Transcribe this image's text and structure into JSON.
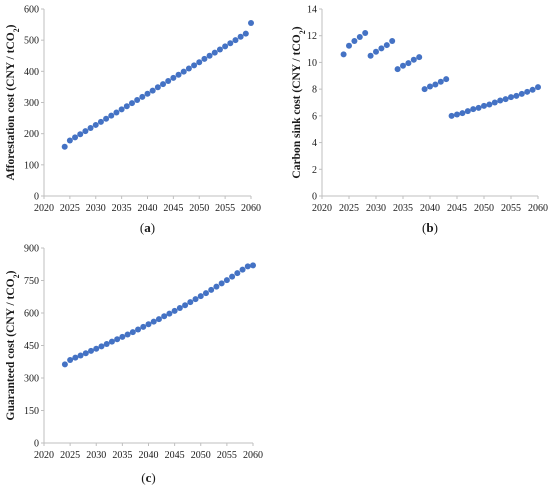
{
  "chart_data": [
    {
      "type": "scatter",
      "panel": "(a)",
      "caption_letter": "a",
      "ylabel": "Afforestation cost (CNY / tCO",
      "ylabel_sub": "2",
      "ylabel_end": ")",
      "xlim": [
        2020,
        2060
      ],
      "ylim": [
        0,
        600
      ],
      "x_ticks": [
        2020,
        2025,
        2030,
        2035,
        2040,
        2045,
        2050,
        2055,
        2060
      ],
      "y_ticks": [
        0,
        100,
        200,
        300,
        400,
        500,
        600
      ],
      "point_color": "#4472c4",
      "x": [
        2024,
        2025,
        2026,
        2027,
        2028,
        2029,
        2030,
        2031,
        2032,
        2033,
        2034,
        2035,
        2036,
        2037,
        2038,
        2039,
        2040,
        2041,
        2042,
        2043,
        2044,
        2045,
        2046,
        2047,
        2048,
        2049,
        2050,
        2051,
        2052,
        2053,
        2054,
        2055,
        2056,
        2057,
        2058,
        2059,
        2060
      ],
      "y": [
        158,
        178,
        188,
        198,
        208,
        218,
        228,
        238,
        248,
        258,
        268,
        278,
        288,
        298,
        308,
        318,
        328,
        338,
        349,
        359,
        369,
        379,
        389,
        399,
        409,
        419,
        429,
        440,
        450,
        460,
        470,
        480,
        490,
        500,
        511,
        521,
        555
      ]
    },
    {
      "type": "scatter",
      "panel": "(b)",
      "caption_letter": "b",
      "ylabel": "Carbon sink cost (CNY / tCO",
      "ylabel_sub": "2",
      "ylabel_end": ")",
      "xlim": [
        2020,
        2060
      ],
      "ylim": [
        0,
        14
      ],
      "x_ticks": [
        2020,
        2025,
        2030,
        2035,
        2040,
        2045,
        2050,
        2055,
        2060
      ],
      "y_ticks": [
        0,
        2,
        4,
        6,
        8,
        10,
        12,
        14
      ],
      "point_color": "#4472c4",
      "x": [
        2024,
        2025,
        2026,
        2027,
        2028,
        2029,
        2030,
        2031,
        2032,
        2033,
        2034,
        2035,
        2036,
        2037,
        2038,
        2039,
        2040,
        2041,
        2042,
        2043,
        2044,
        2045,
        2046,
        2047,
        2048,
        2049,
        2050,
        2051,
        2052,
        2053,
        2054,
        2055,
        2056,
        2057,
        2058,
        2059,
        2060
      ],
      "y": [
        10.6,
        11.25,
        11.6,
        11.9,
        12.2,
        10.5,
        10.8,
        11.05,
        11.3,
        11.6,
        9.5,
        9.75,
        9.95,
        10.2,
        10.4,
        8.0,
        8.2,
        8.35,
        8.55,
        8.75,
        6.0,
        6.1,
        6.2,
        6.35,
        6.5,
        6.6,
        6.75,
        6.85,
        7.0,
        7.15,
        7.25,
        7.4,
        7.5,
        7.65,
        7.8,
        7.95,
        8.15
      ]
    },
    {
      "type": "scatter",
      "panel": "(c)",
      "caption_letter": "c",
      "ylabel": "Guaranteed cost (CNY / tCO",
      "ylabel_sub": "2",
      "ylabel_end": ")",
      "xlim": [
        2020,
        2060
      ],
      "ylim": [
        0,
        900
      ],
      "x_ticks": [
        2020,
        2025,
        2030,
        2035,
        2040,
        2045,
        2050,
        2055,
        2060
      ],
      "y_ticks": [
        0,
        150,
        300,
        450,
        600,
        750,
        900
      ],
      "point_color": "#4472c4",
      "x": [
        2024,
        2025,
        2026,
        2027,
        2028,
        2029,
        2030,
        2031,
        2032,
        2033,
        2034,
        2035,
        2036,
        2037,
        2038,
        2039,
        2040,
        2041,
        2042,
        2043,
        2044,
        2045,
        2046,
        2047,
        2048,
        2049,
        2050,
        2051,
        2052,
        2053,
        2054,
        2055,
        2056,
        2057,
        2058,
        2059,
        2060
      ],
      "y": [
        363,
        383,
        394,
        404,
        414,
        425,
        435,
        446,
        457,
        468,
        479,
        490,
        501,
        512,
        524,
        536,
        548,
        560,
        572,
        585,
        597,
        610,
        623,
        636,
        650,
        664,
        678,
        692,
        707,
        722,
        737,
        752,
        768,
        784,
        800,
        815,
        820
      ]
    }
  ]
}
